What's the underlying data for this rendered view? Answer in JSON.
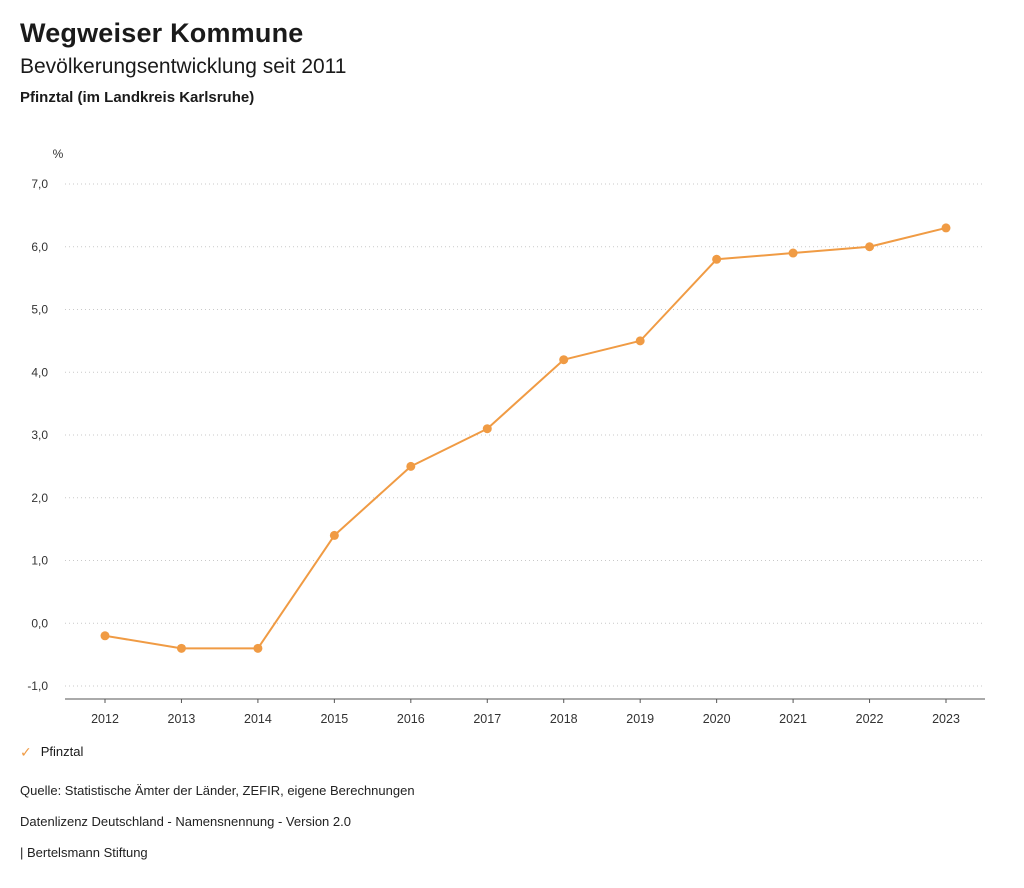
{
  "header": {
    "title": "Wegweiser Kommune",
    "subtitle": "Bevölkerungsentwicklung seit 2011",
    "location": "Pfinztal (im Landkreis Karlsruhe)"
  },
  "legend": {
    "check_icon": "✓",
    "label": "Pfinztal"
  },
  "footer": {
    "source": "Quelle: Statistische Ämter der Länder, ZEFIR, eigene Berechnungen",
    "license": "Datenlizenz Deutschland - Namensnennung - Version 2.0",
    "attribution": "| Bertelsmann Stiftung"
  },
  "colors": {
    "series": "#F09B44",
    "grid": "#c9c9c9",
    "axis": "#555555",
    "tick_text": "#333333"
  },
  "chart_data": {
    "type": "line",
    "title": "Bevölkerungsentwicklung seit 2011",
    "subtitle": "Pfinztal (im Landkreis Karlsruhe)",
    "unit": "%",
    "x": [
      2012,
      2013,
      2014,
      2015,
      2016,
      2017,
      2018,
      2019,
      2020,
      2021,
      2022,
      2023
    ],
    "series": [
      {
        "name": "Pfinztal",
        "color": "#F09B44",
        "values": [
          -0.2,
          -0.4,
          -0.4,
          1.4,
          2.5,
          3.1,
          4.2,
          4.5,
          5.8,
          5.9,
          6.0,
          6.3
        ]
      }
    ],
    "ylim": [
      -1.0,
      7.0
    ],
    "ytick_step": 1.0,
    "decimal_separator": ",",
    "grid": "horizontal-dotted",
    "legend_position": "bottom-left"
  }
}
